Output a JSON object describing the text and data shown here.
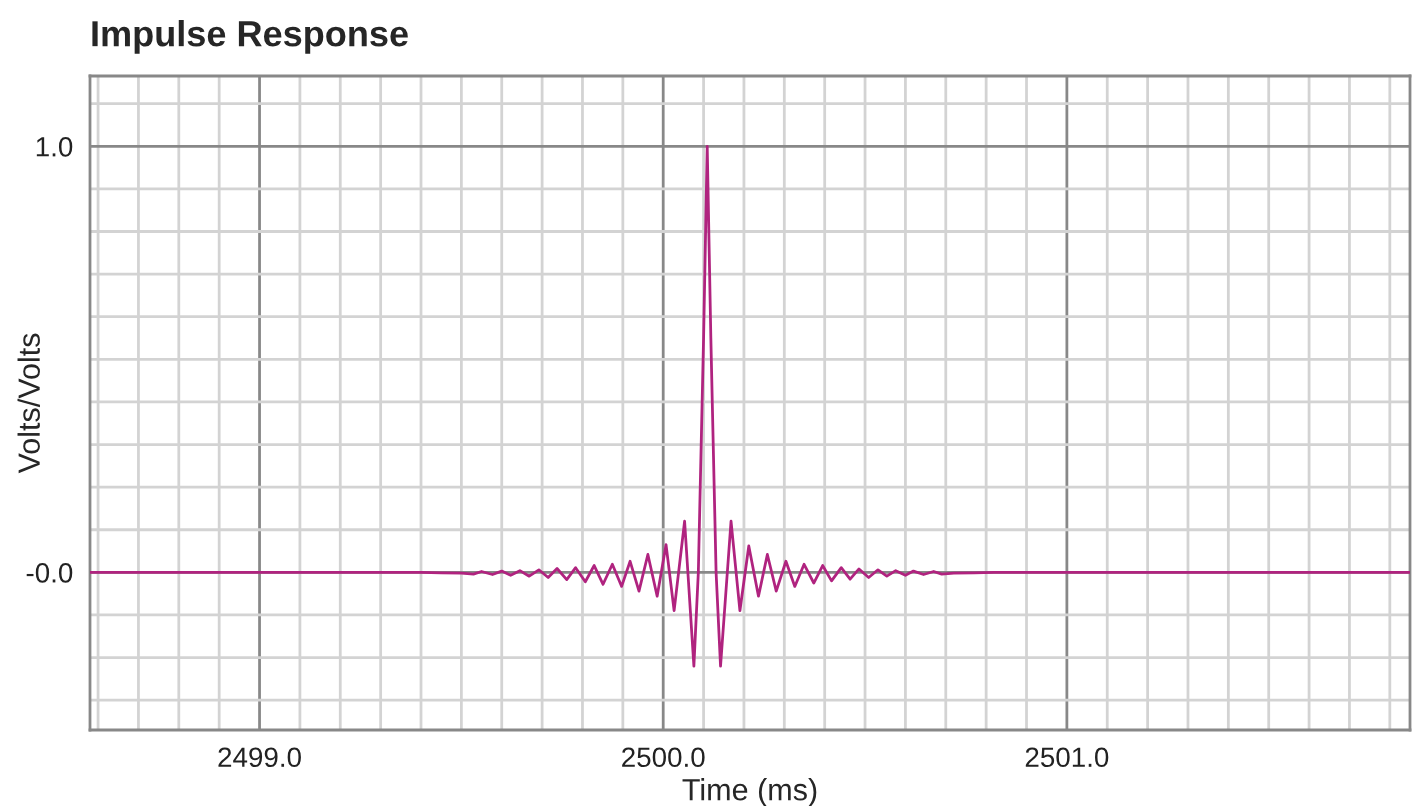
{
  "chart_data": {
    "type": "line",
    "title": "Impulse Response",
    "xlabel": "Time (ms)",
    "ylabel": "Volts/Volts",
    "xlim": [
      2498.58,
      2501.85
    ],
    "ylim": [
      -0.37,
      1.165
    ],
    "xticks": [
      {
        "value": 2498.6,
        "label": null
      },
      {
        "value": 2498.7,
        "label": null
      },
      {
        "value": 2498.8,
        "label": null
      },
      {
        "value": 2498.9,
        "label": null
      },
      {
        "value": 2499,
        "label": "2499.0"
      },
      {
        "value": 2499.1,
        "label": null
      },
      {
        "value": 2499.2,
        "label": null
      },
      {
        "value": 2499.3,
        "label": null
      },
      {
        "value": 2499.4,
        "label": null
      },
      {
        "value": 2499.5,
        "label": null
      },
      {
        "value": 2499.6,
        "label": null
      },
      {
        "value": 2499.7,
        "label": null
      },
      {
        "value": 2499.8,
        "label": null
      },
      {
        "value": 2499.9,
        "label": null
      },
      {
        "value": 2500,
        "label": "2500.0"
      },
      {
        "value": 2500.1,
        "label": null
      },
      {
        "value": 2500.2,
        "label": null
      },
      {
        "value": 2500.3,
        "label": null
      },
      {
        "value": 2500.4,
        "label": null
      },
      {
        "value": 2500.5,
        "label": null
      },
      {
        "value": 2500.6,
        "label": null
      },
      {
        "value": 2500.7,
        "label": null
      },
      {
        "value": 2500.8,
        "label": null
      },
      {
        "value": 2500.9,
        "label": null
      },
      {
        "value": 2501,
        "label": "2501.0"
      },
      {
        "value": 2501.1,
        "label": null
      },
      {
        "value": 2501.2,
        "label": null
      },
      {
        "value": 2501.3,
        "label": null
      },
      {
        "value": 2501.4,
        "label": null
      },
      {
        "value": 2501.5,
        "label": null
      },
      {
        "value": 2501.6,
        "label": null
      },
      {
        "value": 2501.7,
        "label": null
      },
      {
        "value": 2501.8,
        "label": null
      }
    ],
    "yticks": [
      {
        "value": -0.3,
        "label": null
      },
      {
        "value": -0.2,
        "label": null
      },
      {
        "value": -0.1,
        "label": null
      },
      {
        "value": 0,
        "label": "-0.0"
      },
      {
        "value": 0.1,
        "label": null
      },
      {
        "value": 0.2,
        "label": null
      },
      {
        "value": 0.3,
        "label": null
      },
      {
        "value": 0.4,
        "label": null
      },
      {
        "value": 0.5,
        "label": null
      },
      {
        "value": 0.6,
        "label": null
      },
      {
        "value": 0.7,
        "label": null
      },
      {
        "value": 0.8,
        "label": null
      },
      {
        "value": 0.9,
        "label": null
      },
      {
        "value": 1,
        "label": "1.0"
      },
      {
        "value": 1.1,
        "label": null
      }
    ],
    "grid": true,
    "line_style": "solid",
    "marker": "none",
    "series": [
      {
        "color": "#b0237f",
        "x": [
          2498.58,
          2499.4,
          2499.45,
          2499.5,
          2499.53,
          2499.55,
          2499.577,
          2499.6,
          2499.622,
          2499.645,
          2499.668,
          2499.692,
          2499.715,
          2499.737,
          2499.761,
          2499.783,
          2499.807,
          2499.829,
          2499.851,
          2499.874,
          2499.897,
          2499.918,
          2499.94,
          2499.962,
          2499.985,
          2500.007,
          2500.027,
          2500.053,
          2500.076,
          2500.087,
          2500.1,
          2500.109,
          2500.118,
          2500.131,
          2500.142,
          2500.168,
          2500.19,
          2500.212,
          2500.236,
          2500.258,
          2500.28,
          2500.304,
          2500.326,
          2500.349,
          2500.373,
          2500.395,
          2500.417,
          2500.441,
          2500.463,
          2500.485,
          2500.509,
          2500.532,
          2500.554,
          2500.576,
          2500.6,
          2500.62,
          2500.645,
          2500.67,
          2500.69,
          2500.72,
          2500.77,
          2500.82,
          2501.85
        ],
        "values": [
          0,
          0,
          -0.001,
          -0.002,
          -0.004,
          0.002,
          -0.005,
          0.003,
          -0.007,
          0.004,
          -0.009,
          0.006,
          -0.012,
          0.009,
          -0.017,
          0.011,
          -0.022,
          0.016,
          -0.028,
          0.019,
          -0.033,
          0.026,
          -0.044,
          0.042,
          -0.056,
          0.065,
          -0.09,
          0.12,
          -0.22,
          0,
          0.55,
          1.0,
          0.55,
          0,
          -0.22,
          0.12,
          -0.09,
          0.062,
          -0.056,
          0.042,
          -0.044,
          0.026,
          -0.033,
          0.019,
          -0.025,
          0.016,
          -0.02,
          0.011,
          -0.016,
          0.008,
          -0.012,
          0.006,
          -0.009,
          0.004,
          -0.007,
          0.003,
          -0.005,
          0.002,
          -0.004,
          -0.002,
          -0.001,
          0,
          0
        ]
      }
    ]
  }
}
